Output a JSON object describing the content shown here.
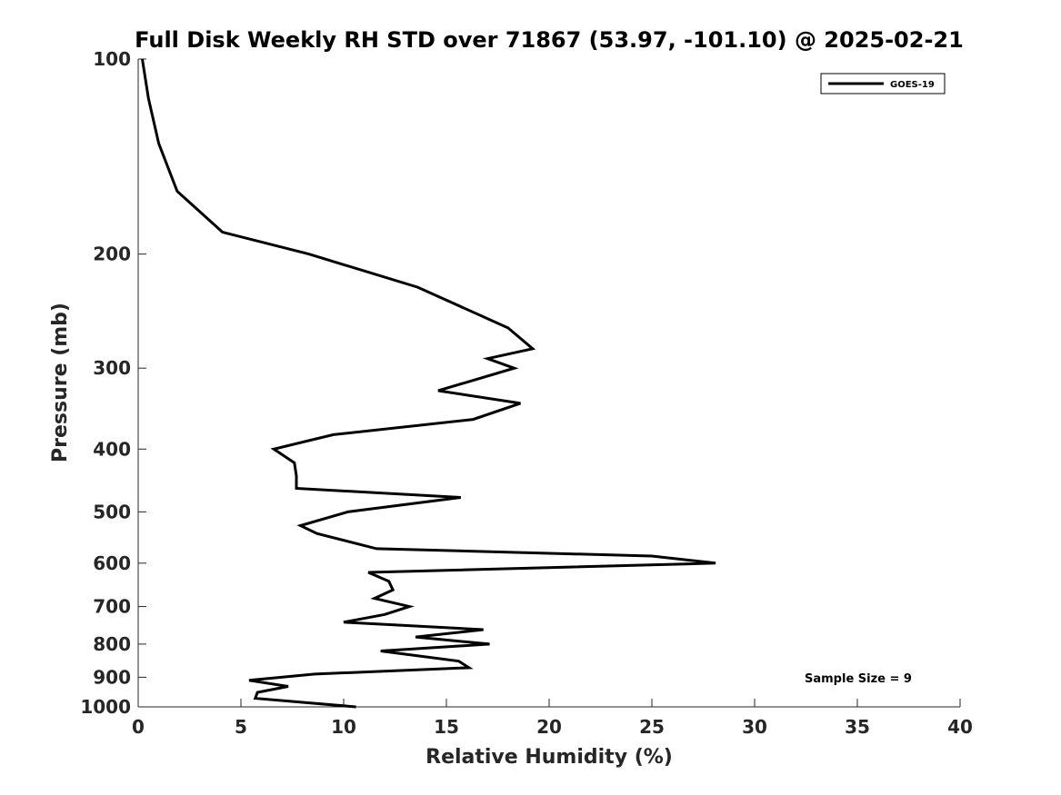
{
  "chart_data": {
    "type": "line",
    "title": "Full Disk Weekly RH STD over 71867 (53.97, -101.10) @ 2025-02-21",
    "xlabel": "Relative Humidity (%)",
    "ylabel": "Pressure (mb)",
    "xlim": [
      0,
      40
    ],
    "ylim": [
      100,
      1000
    ],
    "yscale": "log",
    "y_reversed": true,
    "xticks": [
      0,
      5,
      10,
      15,
      20,
      25,
      30,
      35,
      40
    ],
    "yticks": [
      100,
      200,
      300,
      400,
      500,
      600,
      700,
      800,
      900,
      1000
    ],
    "grid": false,
    "legend": {
      "location": "top-right",
      "entries": [
        "GOES-19"
      ]
    },
    "annotation": "Sample Size = 9",
    "series": [
      {
        "name": "GOES-19",
        "color": "#000000",
        "x": [
          0.2,
          0.5,
          1.0,
          1.9,
          4.1,
          8.3,
          13.6,
          18.0,
          19.2,
          17.0,
          18.3,
          14.6,
          18.6,
          16.3,
          9.5,
          6.6,
          7.6,
          7.7,
          7.7,
          15.7,
          10.2,
          7.9,
          8.7,
          11.6,
          25.0,
          28.1,
          11.2,
          12.2,
          12.4,
          11.5,
          13.2,
          12.0,
          10.0,
          16.8,
          13.5,
          17.1,
          11.8,
          15.6,
          16.1,
          8.6,
          5.4,
          7.3,
          5.8,
          5.7,
          10.6
        ],
        "y": [
          100,
          115,
          135,
          160,
          185,
          200,
          225,
          260,
          280,
          290,
          300,
          325,
          340,
          360,
          380,
          400,
          420,
          440,
          460,
          475,
          500,
          525,
          540,
          570,
          585,
          600,
          620,
          640,
          660,
          680,
          700,
          720,
          740,
          760,
          780,
          800,
          820,
          850,
          870,
          890,
          910,
          930,
          950,
          970,
          1000
        ]
      }
    ]
  }
}
